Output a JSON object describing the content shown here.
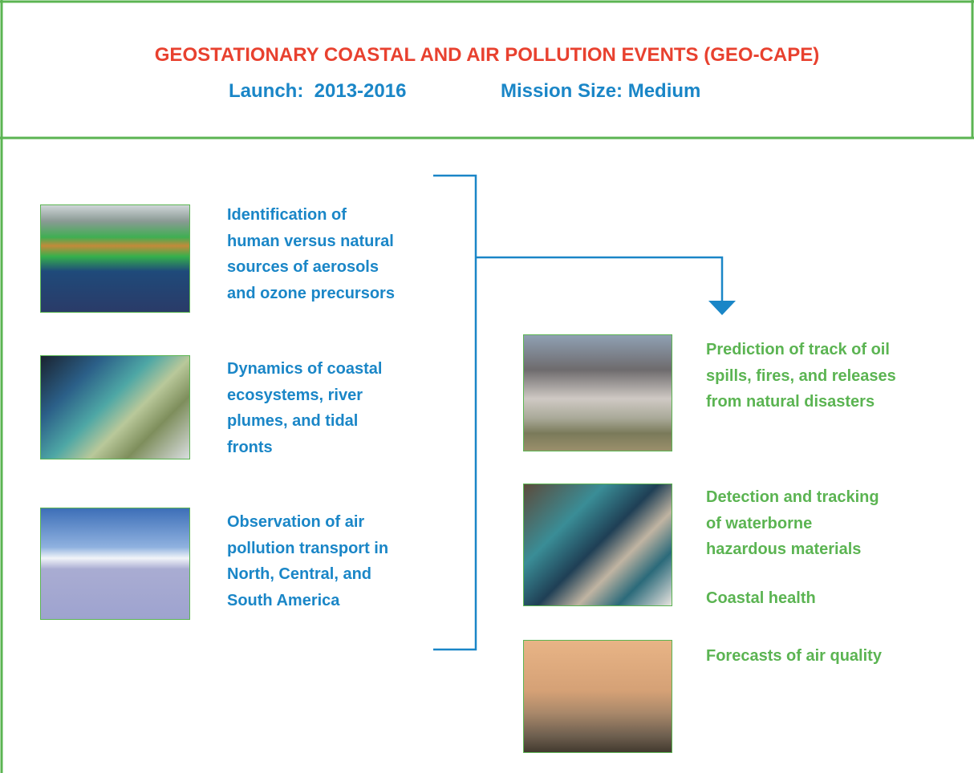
{
  "header": {
    "title": "GEOSTATIONARY COASTAL AND AIR POLLUTION EVENTS (GEO-CAPE)",
    "launch": "Launch:  2013-2016",
    "mission_size": "Mission Size: Medium"
  },
  "objectives": [
    {
      "lines": [
        "Identification of",
        "human versus natural",
        "sources of aerosols",
        "and ozone precursors"
      ]
    },
    {
      "lines": [
        "Dynamics of coastal",
        "ecosystems, river",
        "plumes, and tidal",
        "fronts"
      ]
    },
    {
      "lines": [
        "Observation of air",
        "pollution transport in",
        "North, Central, and",
        "South America"
      ]
    }
  ],
  "applications": [
    {
      "lines": [
        "Prediction of track of oil",
        "spills, fires, and releases",
        "from natural disasters"
      ]
    },
    {
      "lines": [
        "Detection and tracking",
        "of waterborne",
        "hazardous materials"
      ]
    },
    {
      "lines": [
        "Coastal health"
      ]
    },
    {
      "lines": [
        "Forecasts of air quality"
      ]
    }
  ]
}
